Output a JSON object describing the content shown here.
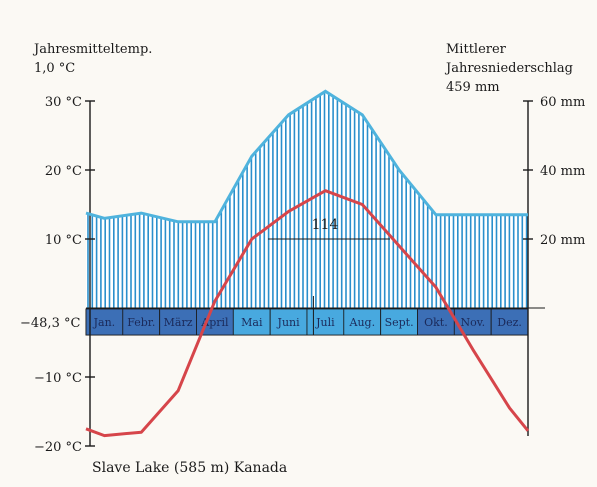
{
  "chart_data": {
    "type": "climate-diagram",
    "station": "Slave Lake (585 m) Kanada",
    "left_header": {
      "line1": "Jahresmitteltemp.",
      "line2": "1,0 °C"
    },
    "right_header": {
      "line1": "Mittlerer",
      "line2": "Jahresniederschlag",
      "line3": "459 mm"
    },
    "min_temp_label": "−48,3 °C",
    "peak_label": "114",
    "months": [
      "Jan.",
      "Febr.",
      "März",
      "April",
      "Mai",
      "Juni",
      "Juli",
      "Aug.",
      "Sept.",
      "Okt.",
      "Nov.",
      "Dez."
    ],
    "temperature_axis": {
      "unit": "°C",
      "ticks": [
        30,
        20,
        10,
        -10,
        -20
      ],
      "tick_labels": [
        "30 °C",
        "20 °C",
        "10 °C",
        "−10 °C",
        "−20 °C"
      ],
      "range": [
        -20,
        30
      ]
    },
    "precipitation_axis": {
      "unit": "mm",
      "ticks": [
        20,
        40,
        60
      ],
      "tick_labels": [
        "20 mm",
        "40 mm",
        "60 mm"
      ],
      "range": [
        0,
        60
      ]
    },
    "temperature": {
      "x": [
        -0.5,
        0,
        1,
        2,
        3,
        4,
        5,
        6,
        7,
        8,
        9,
        10,
        11,
        11.5
      ],
      "values": [
        -17.5,
        -18.5,
        -18,
        -12,
        1,
        10,
        14,
        17,
        15,
        9,
        3,
        -6,
        -14.5,
        -17.8
      ]
    },
    "precipitation": {
      "x": [
        -0.5,
        0,
        1,
        2,
        3,
        4,
        5,
        6,
        7,
        8,
        9,
        10,
        11,
        11.5
      ],
      "values": [
        27.5,
        26,
        27.5,
        25,
        25,
        44,
        56,
        75,
        56,
        40,
        27,
        27,
        27,
        27
      ]
    },
    "colors": {
      "temperature_line": "#d6454a",
      "precipitation_line": "#4fb3dd",
      "humid_hatch": "#2a8fcc",
      "month_band_dark": "#3c6fb6",
      "month_band_light": "#48a9df",
      "axis": "#1a1a1a"
    }
  }
}
